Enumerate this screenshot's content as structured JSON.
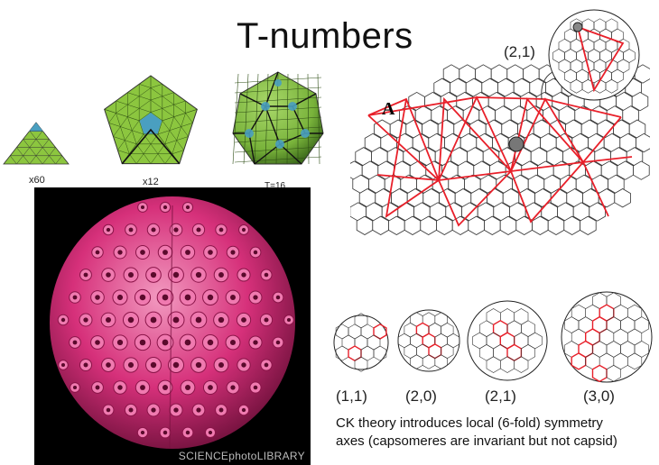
{
  "title": "T-numbers",
  "tiles": {
    "triangle_label": "x60",
    "pentagon_label": "x12",
    "capsid_label": "T=16"
  },
  "lattice": {
    "coord_label": "(2,1)",
    "vector_label": "A"
  },
  "capsids": [
    {
      "label": "(1,1)"
    },
    {
      "label": "(2,0)"
    },
    {
      "label": "(2,1)"
    },
    {
      "label": "(3,0)"
    }
  ],
  "caption": {
    "line1": "CK theory introduces local (6-fold) symmetry",
    "line2": "axes (capsomeres are invariant but not capsid)"
  },
  "photo": {
    "watermark": "SCIENCEphotoLIBRARY"
  },
  "colors": {
    "tile_green": "#8cc63f",
    "tile_blue": "#4a9fc0",
    "lattice_red": "#e8202a",
    "virus_pink": "#d6307a"
  }
}
